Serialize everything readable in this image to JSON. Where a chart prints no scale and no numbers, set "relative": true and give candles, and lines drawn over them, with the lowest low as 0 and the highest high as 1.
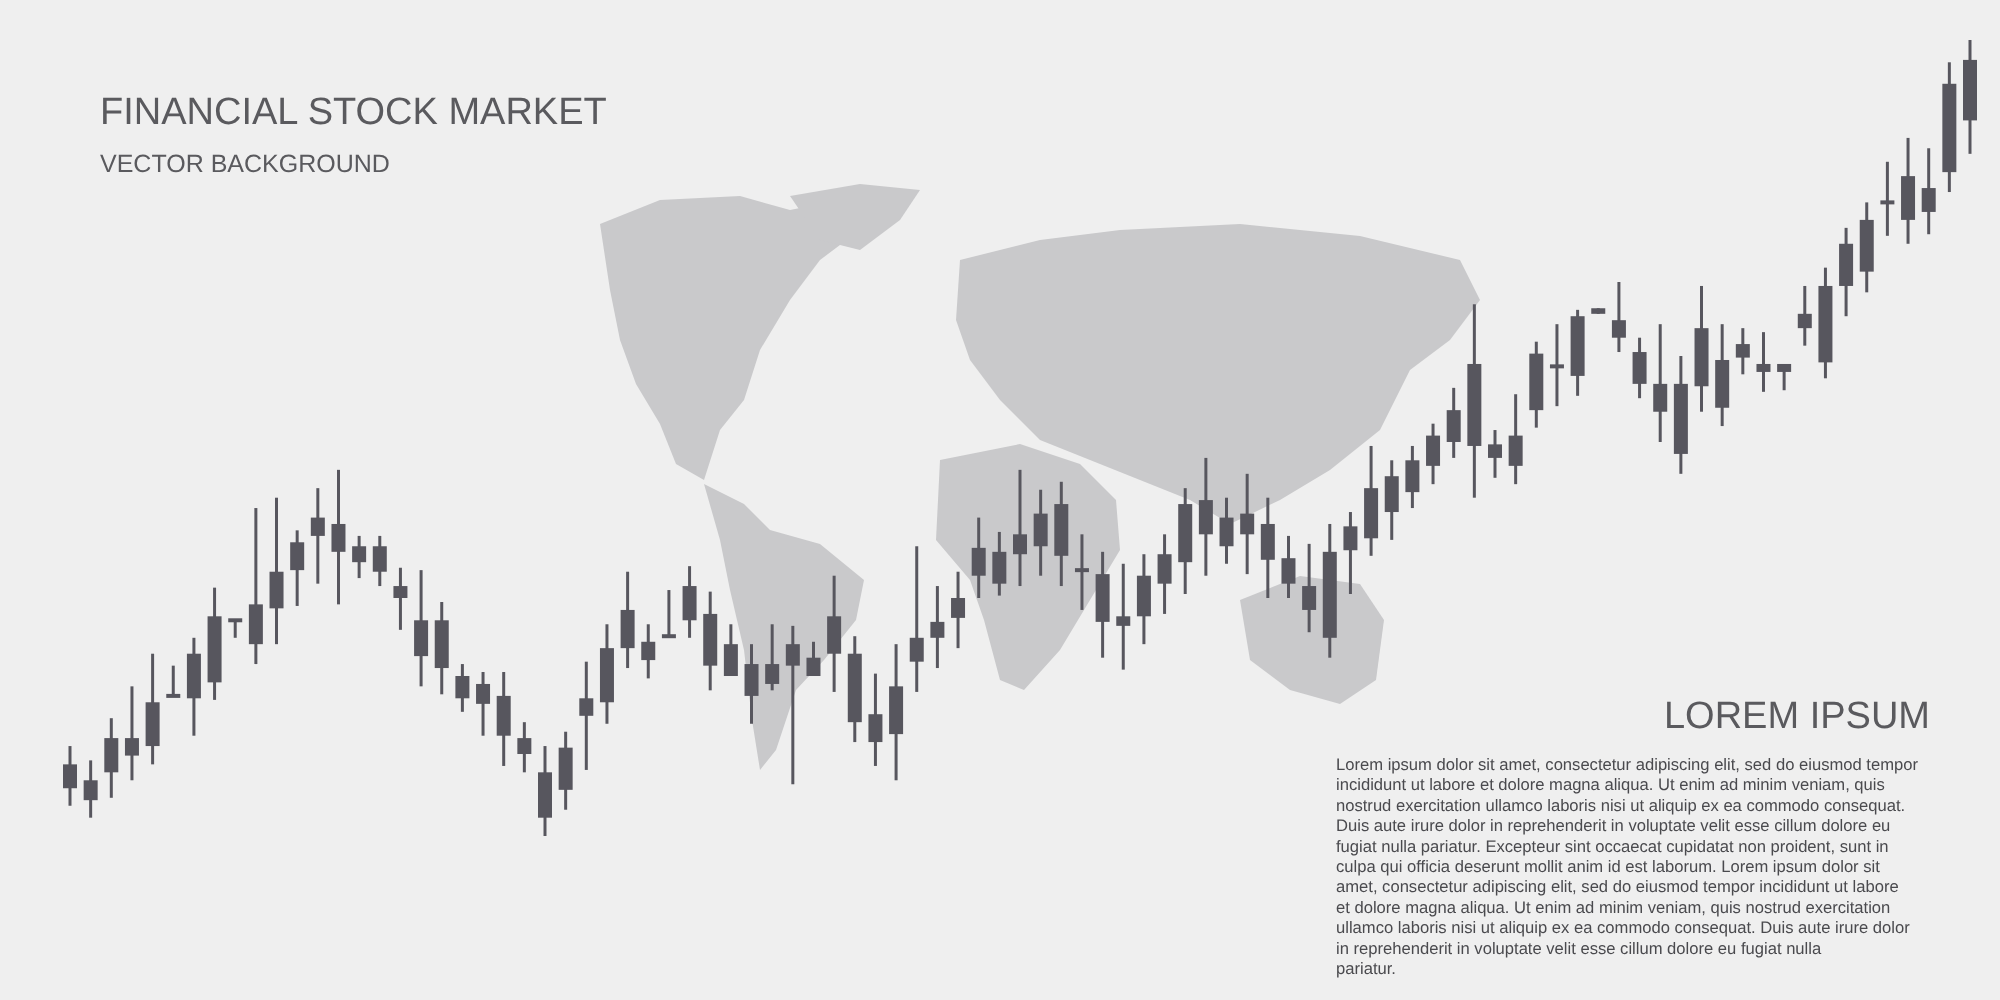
{
  "chart_data": {
    "type": "candlestick",
    "title": "FINANCIAL STOCK MARKET",
    "subtitle": "VECTOR BACKGROUND",
    "relative": true,
    "color": "#57565e",
    "categories": [
      null,
      null,
      null,
      null,
      null,
      null,
      null,
      null,
      null,
      null,
      null,
      null,
      null,
      null,
      null,
      null,
      null,
      null,
      null,
      null,
      null,
      null,
      null,
      null,
      null,
      null,
      null,
      null,
      null,
      null,
      null,
      null,
      null,
      null,
      null,
      null,
      null,
      null,
      null,
      null,
      null,
      null,
      null,
      null,
      null,
      null,
      null,
      null,
      null,
      null,
      null,
      null,
      null,
      null,
      null,
      null,
      null,
      null,
      null,
      null,
      null,
      null,
      null,
      null,
      null,
      null,
      null,
      null,
      null,
      null,
      null,
      null,
      null,
      null,
      null,
      null,
      null,
      null,
      null,
      null,
      null,
      null,
      null,
      null,
      null,
      null,
      null,
      null,
      null,
      null,
      null,
      null,
      null
    ],
    "ohlc": [
      [
        0.06,
        0.113,
        0.038,
        0.09
      ],
      [
        0.045,
        0.095,
        0.023,
        0.07
      ],
      [
        0.08,
        0.148,
        0.048,
        0.123
      ],
      [
        0.101,
        0.188,
        0.07,
        0.123
      ],
      [
        0.113,
        0.229,
        0.09,
        0.168
      ],
      [
        0.176,
        0.214,
        0.176,
        0.176
      ],
      [
        0.173,
        0.249,
        0.126,
        0.229
      ],
      [
        0.193,
        0.312,
        0.171,
        0.276
      ],
      [
        0.271,
        0.271,
        0.249,
        0.271
      ],
      [
        0.241,
        0.412,
        0.216,
        0.291
      ],
      [
        0.286,
        0.425,
        0.241,
        0.332
      ],
      [
        0.334,
        0.384,
        0.289,
        0.369
      ],
      [
        0.377,
        0.437,
        0.317,
        0.4
      ],
      [
        0.357,
        0.46,
        0.291,
        0.392
      ],
      [
        0.344,
        0.377,
        0.324,
        0.364
      ],
      [
        0.332,
        0.377,
        0.314,
        0.364
      ],
      [
        0.299,
        0.337,
        0.259,
        0.314
      ],
      [
        0.226,
        0.334,
        0.188,
        0.271
      ],
      [
        0.211,
        0.294,
        0.178,
        0.271
      ],
      [
        0.173,
        0.216,
        0.156,
        0.201
      ],
      [
        0.166,
        0.206,
        0.126,
        0.191
      ],
      [
        0.126,
        0.206,
        0.088,
        0.176
      ],
      [
        0.103,
        0.143,
        0.08,
        0.123
      ],
      [
        0.023,
        0.113,
        0,
        0.08
      ],
      [
        0.058,
        0.131,
        0.033,
        0.111
      ],
      [
        0.151,
        0.219,
        0.083,
        0.173
      ],
      [
        0.168,
        0.266,
        0.141,
        0.236
      ],
      [
        0.236,
        0.332,
        0.211,
        0.284
      ],
      [
        0.221,
        0.266,
        0.198,
        0.244
      ],
      [
        0.251,
        0.309,
        0.251,
        0.251
      ],
      [
        0.271,
        0.339,
        0.249,
        0.314
      ],
      [
        0.214,
        0.307,
        0.183,
        0.279
      ],
      [
        0.201,
        0.266,
        0.201,
        0.241
      ],
      [
        0.176,
        0.241,
        0.141,
        0.216
      ],
      [
        0.191,
        0.266,
        0.183,
        0.216
      ],
      [
        0.214,
        0.264,
        0.065,
        0.241
      ],
      [
        0.201,
        0.244,
        0.201,
        0.224
      ],
      [
        0.229,
        0.327,
        0.181,
        0.276
      ],
      [
        0.143,
        0.251,
        0.118,
        0.229
      ],
      [
        0.118,
        0.204,
        0.088,
        0.153
      ],
      [
        0.128,
        0.241,
        0.07,
        0.188
      ],
      [
        0.219,
        0.364,
        0.181,
        0.249
      ],
      [
        0.249,
        0.314,
        0.211,
        0.269
      ],
      [
        0.274,
        0.332,
        0.236,
        0.299
      ],
      [
        0.327,
        0.4,
        0.299,
        0.362
      ],
      [
        0.317,
        0.382,
        0.302,
        0.357
      ],
      [
        0.354,
        0.46,
        0.314,
        0.379
      ],
      [
        0.364,
        0.435,
        0.327,
        0.405
      ],
      [
        0.352,
        0.445,
        0.314,
        0.417
      ],
      [
        0.334,
        0.379,
        0.284,
        0.334
      ],
      [
        0.269,
        0.357,
        0.224,
        0.329
      ],
      [
        0.264,
        0.342,
        0.209,
        0.276
      ],
      [
        0.276,
        0.354,
        0.241,
        0.327
      ],
      [
        0.317,
        0.379,
        0.279,
        0.354
      ],
      [
        0.344,
        0.437,
        0.304,
        0.417
      ],
      [
        0.379,
        0.475,
        0.327,
        0.422
      ],
      [
        0.364,
        0.425,
        0.342,
        0.4
      ],
      [
        0.379,
        0.455,
        0.329,
        0.405
      ],
      [
        0.347,
        0.425,
        0.299,
        0.392
      ],
      [
        0.317,
        0.377,
        0.299,
        0.349
      ],
      [
        0.284,
        0.367,
        0.256,
        0.314
      ],
      [
        0.249,
        0.392,
        0.224,
        0.357
      ],
      [
        0.359,
        0.407,
        0.304,
        0.389
      ],
      [
        0.374,
        0.49,
        0.352,
        0.437
      ],
      [
        0.407,
        0.472,
        0.372,
        0.452
      ],
      [
        0.432,
        0.49,
        0.412,
        0.472
      ],
      [
        0.465,
        0.518,
        0.442,
        0.503
      ],
      [
        0.495,
        0.563,
        0.475,
        0.535
      ],
      [
        0.49,
        0.668,
        0.425,
        0.593
      ],
      [
        0.475,
        0.51,
        0.45,
        0.492
      ],
      [
        0.465,
        0.555,
        0.442,
        0.503
      ],
      [
        0.535,
        0.621,
        0.513,
        0.606
      ],
      [
        0.59,
        0.643,
        0.54,
        0.59
      ],
      [
        0.578,
        0.661,
        0.553,
        0.653
      ],
      [
        0.656,
        0.663,
        0.656,
        0.663
      ],
      [
        0.626,
        0.696,
        0.608,
        0.648
      ],
      [
        0.568,
        0.626,
        0.55,
        0.608
      ],
      [
        0.533,
        0.643,
        0.495,
        0.568
      ],
      [
        0.48,
        0.603,
        0.455,
        0.568
      ],
      [
        0.565,
        0.691,
        0.533,
        0.638
      ],
      [
        0.538,
        0.643,
        0.515,
        0.598
      ],
      [
        0.601,
        0.638,
        0.58,
        0.618
      ],
      [
        0.583,
        0.633,
        0.558,
        0.593
      ],
      [
        0.583,
        0.593,
        0.56,
        0.593
      ],
      [
        0.638,
        0.691,
        0.616,
        0.656
      ],
      [
        0.595,
        0.714,
        0.575,
        0.691
      ],
      [
        0.691,
        0.764,
        0.653,
        0.744
      ],
      [
        0.709,
        0.796,
        0.683,
        0.774
      ],
      [
        0.796,
        0.847,
        0.754,
        0.796
      ],
      [
        0.774,
        0.877,
        0.744,
        0.829
      ],
      [
        0.784,
        0.864,
        0.756,
        0.814
      ],
      [
        0.834,
        0.972,
        0.809,
        0.945
      ],
      [
        0.899,
        1,
        0.857,
        0.975
      ]
    ],
    "annotations": [
      "LOREM IPSUM",
      "Lorem ipsum dolor sit amet, consectetur adipiscing elit, sed do eiusmod tempor incididunt ut labore et dolore magna aliqua. Ut enim ad minim veniam, quis nostrud exercitation ullamco laboris nisi ut aliquip ex ea commodo consequat. Duis aute irure dolor in reprehenderit in voluptate velit esse cillum dolore eu fugiat nulla pariatur. Excepteur sint occaecat cupidatat non proident, sunt in culpa qui officia deserunt mollit anim id est laborum. Lorem ipsum dolor sit amet, consectetur adipiscing elit, sed do eiusmod tempor incididunt ut labore et dolore magna aliqua. Ut enim ad minim veniam, quis nostrud exercitation ullamco laboris nisi ut aliquip ex ea commodo consequat. Duis aute irure dolor in reprehenderit in voluptate velit esse cillum dolore eu fugiat nulla pariatur."
    ]
  }
}
